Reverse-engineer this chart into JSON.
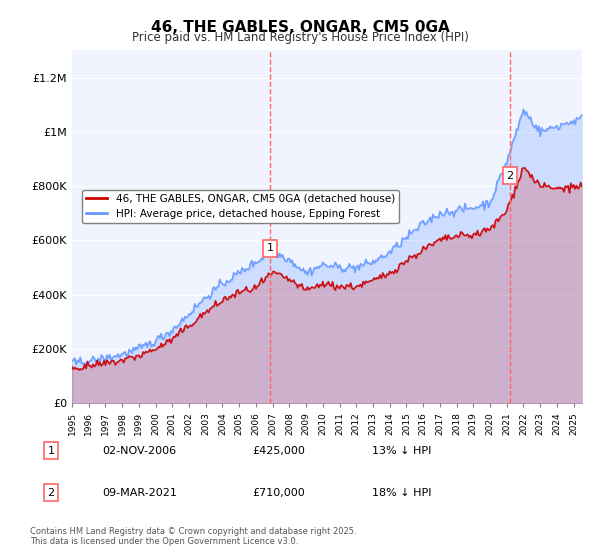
{
  "title": "46, THE GABLES, ONGAR, CM5 0GA",
  "subtitle": "Price paid vs. HM Land Registry's House Price Index (HPI)",
  "xlabel": "",
  "ylabel": "",
  "ylim": [
    0,
    1300000
  ],
  "yticks": [
    0,
    200000,
    400000,
    600000,
    800000,
    1000000,
    1200000
  ],
  "ytick_labels": [
    "£0",
    "£200K",
    "£400K",
    "£600K",
    "£800K",
    "£1M",
    "£1.2M"
  ],
  "xstart_year": 1995,
  "xend_year": 2026,
  "vline1_year": 2006.84,
  "vline2_year": 2021.18,
  "vline_color": "#ff6666",
  "hpi_color": "#6699ff",
  "price_color": "#cc0000",
  "background_color": "#f0f4ff",
  "legend_label1": "46, THE GABLES, ONGAR, CM5 0GA (detached house)",
  "legend_label2": "HPI: Average price, detached house, Epping Forest",
  "note1_num": "1",
  "note1_date": "02-NOV-2006",
  "note1_price": "£425,000",
  "note1_hpi": "13% ↓ HPI",
  "note2_num": "2",
  "note2_date": "09-MAR-2021",
  "note2_price": "£710,000",
  "note2_hpi": "18% ↓ HPI",
  "footer": "Contains HM Land Registry data © Crown copyright and database right 2025.\nThis data is licensed under the Open Government Licence v3.0."
}
